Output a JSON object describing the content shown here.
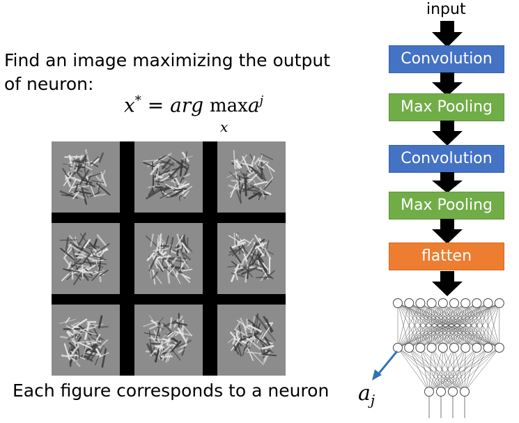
{
  "intro_text": "Find an image maximizing the output of neuron:",
  "formula": {
    "lhs": "x",
    "star": "*",
    "eq": " = ",
    "arg": "arg",
    "max": "max",
    "max_sub": "x",
    "a": "a",
    "a_sup": "j"
  },
  "caption": "Each figure corresponds to a neuron",
  "pipeline": {
    "input_label": "input",
    "blocks": [
      {
        "label": "Convolution",
        "kind": "conv",
        "color": "#4472c4"
      },
      {
        "label": "Max Pooling",
        "kind": "pool",
        "color": "#70ad47"
      },
      {
        "label": "Convolution",
        "kind": "conv",
        "color": "#4472c4"
      },
      {
        "label": "Max Pooling",
        "kind": "pool",
        "color": "#70ad47"
      },
      {
        "label": "flatten",
        "kind": "flat",
        "color": "#ed7d31"
      }
    ]
  },
  "output_label": {
    "a": "a",
    "sub": "j"
  },
  "colors": {
    "arrow": "#000000",
    "pointer_arrow": "#2e75b6"
  }
}
